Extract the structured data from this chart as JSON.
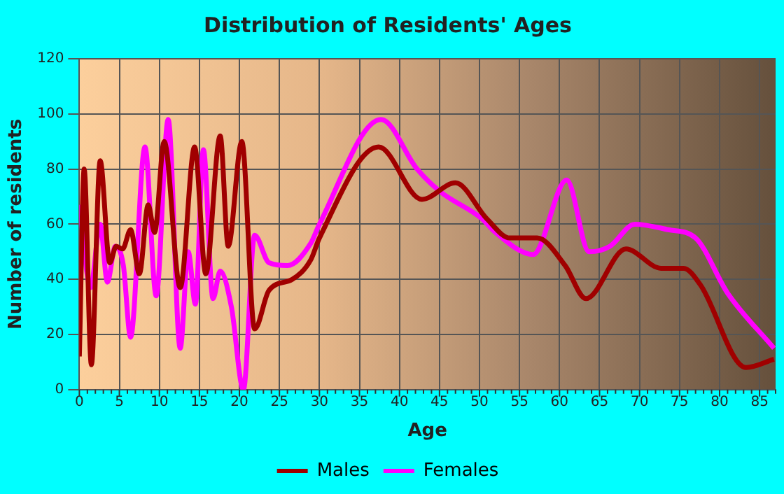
{
  "chart_data": {
    "type": "line",
    "title": "Distribution of Residents' Ages",
    "xlabel": "Age",
    "ylabel": "Number of residents",
    "xlim": [
      0,
      87
    ],
    "xticks": [
      0,
      5,
      10,
      15,
      20,
      25,
      30,
      35,
      40,
      45,
      50,
      55,
      60,
      65,
      70,
      75,
      80,
      85
    ],
    "ylim": [
      0,
      120
    ],
    "yticks": [
      0,
      20,
      40,
      60,
      80,
      100,
      120
    ],
    "grid": true,
    "legend": "bottom",
    "marker": "none",
    "line_style": "solid",
    "series": [
      {
        "name": "Males",
        "color": "#a00000",
        "x": [
          0,
          0.6,
          1.5,
          2.6,
          3.8,
          4.6,
          5.4,
          6.4,
          7.5,
          8.6,
          9.4,
          10.6,
          12.6,
          14.4,
          15.8,
          17.6,
          18.6,
          20.3,
          21.9,
          23.7,
          26.6,
          28.9,
          30,
          37.4,
          42.8,
          47,
          50.9,
          53.8,
          57.2,
          60.7,
          63.3,
          68.3,
          72.7,
          75.5,
          77.6,
          83.3,
          86.8
        ],
        "values": [
          12,
          80,
          9,
          83,
          46,
          52,
          51,
          58,
          42,
          67,
          57,
          90,
          37,
          88,
          42,
          92,
          52,
          90,
          22,
          36,
          40,
          47,
          55,
          88,
          69,
          75,
          62,
          55,
          55,
          45,
          33,
          51,
          44,
          44,
          38,
          8,
          11
        ]
      },
      {
        "name": "Females",
        "color": "#ff00ff",
        "x": [
          0,
          1.4,
          2.6,
          3.5,
          4.5,
          5.5,
          6.4,
          8.2,
          9.6,
          11.1,
          12.6,
          13.6,
          14.5,
          15.5,
          16.7,
          17.6,
          19,
          20.5,
          21.9,
          23.7,
          26,
          28.9,
          30,
          37.7,
          42.2,
          45,
          50.3,
          52,
          56.7,
          60.9,
          63.7,
          66.3,
          69.4,
          73.6,
          77,
          81,
          86.8
        ],
        "values": [
          67,
          37,
          60,
          39,
          52,
          45,
          19,
          88,
          34,
          98,
          15,
          50,
          31,
          87,
          33,
          43,
          30,
          0,
          56,
          46,
          45,
          53,
          60,
          98,
          80,
          72,
          62,
          57,
          49,
          76,
          50,
          52,
          60,
          58,
          55,
          35,
          15
        ]
      }
    ]
  }
}
